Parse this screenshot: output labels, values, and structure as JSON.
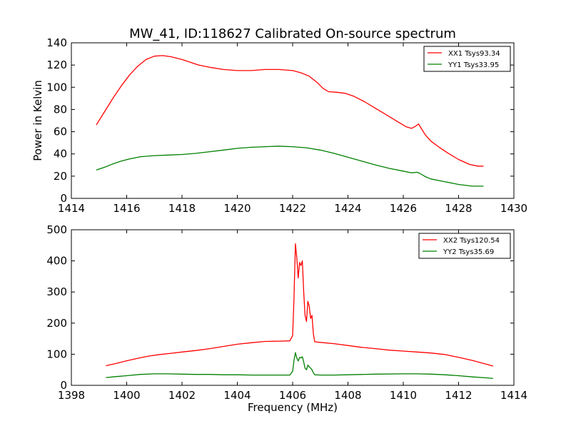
{
  "figure": {
    "title": "MW_41, ID:118627 Calibrated On-source spectrum",
    "background": "#ffffff"
  },
  "chart_data": [
    {
      "type": "line",
      "title": "MW_41, ID:118627 Calibrated On-source spectrum",
      "xlabel": "",
      "ylabel": "Power in Kelvin",
      "xlim": [
        1414,
        1430
      ],
      "ylim": [
        0,
        140
      ],
      "xticks": [
        1414,
        1416,
        1418,
        1420,
        1422,
        1424,
        1426,
        1428,
        1430
      ],
      "yticks": [
        0,
        20,
        40,
        60,
        80,
        100,
        120,
        140
      ],
      "grid": false,
      "legend_position": "top-right",
      "series": [
        {
          "name": "XX1 Tsys93.34",
          "color": "#ff0000",
          "x": [
            1414.9,
            1415.2,
            1415.5,
            1415.8,
            1416.1,
            1416.4,
            1416.7,
            1417.0,
            1417.3,
            1417.6,
            1418.0,
            1418.3,
            1418.6,
            1419.0,
            1419.5,
            1420.0,
            1420.5,
            1421.0,
            1421.5,
            1422.0,
            1422.3,
            1422.6,
            1422.9,
            1423.1,
            1423.3,
            1423.6,
            1423.9,
            1424.2,
            1424.6,
            1425.0,
            1425.4,
            1425.8,
            1426.1,
            1426.3,
            1426.45,
            1426.55,
            1426.65,
            1426.8,
            1427.0,
            1427.3,
            1427.6,
            1428.0,
            1428.4,
            1428.7,
            1428.9
          ],
          "values": [
            66,
            78,
            90,
            101,
            111,
            119,
            125,
            128,
            128.5,
            127.5,
            125,
            122.5,
            120,
            118,
            116,
            115,
            115,
            116,
            116,
            115,
            113,
            110,
            104,
            99,
            96,
            95.5,
            94.5,
            92,
            87,
            81,
            75,
            69,
            64.5,
            63,
            65,
            67,
            63,
            57,
            51.5,
            46,
            41,
            35,
            30.5,
            29,
            29
          ]
        },
        {
          "name": "YY1 Tsys33.95",
          "color": "#008000",
          "x": [
            1414.9,
            1415.2,
            1415.5,
            1415.8,
            1416.1,
            1416.5,
            1417.0,
            1417.5,
            1418.0,
            1418.5,
            1419.0,
            1419.5,
            1420.0,
            1420.5,
            1421.0,
            1421.5,
            1422.0,
            1422.5,
            1423.0,
            1423.5,
            1424.0,
            1424.5,
            1425.0,
            1425.5,
            1426.0,
            1426.3,
            1426.5,
            1426.6,
            1426.8,
            1427.0,
            1427.5,
            1428.0,
            1428.5,
            1428.9
          ],
          "values": [
            25.5,
            28,
            31,
            33.5,
            35.5,
            37.5,
            38.5,
            39,
            39.5,
            40.5,
            42,
            43.5,
            45,
            46,
            46.5,
            47,
            46.5,
            45.5,
            43.5,
            40.5,
            37,
            33.5,
            30,
            27,
            24.5,
            23,
            23.5,
            22.5,
            19.5,
            17.5,
            15,
            12.5,
            11,
            11
          ]
        }
      ]
    },
    {
      "type": "line",
      "title": "",
      "xlabel": "Frequency (MHz)",
      "ylabel": "",
      "xlim": [
        1398,
        1414
      ],
      "ylim": [
        0,
        500
      ],
      "xticks": [
        1398,
        1400,
        1402,
        1404,
        1406,
        1408,
        1410,
        1412,
        1414
      ],
      "yticks": [
        0,
        100,
        200,
        300,
        400,
        500
      ],
      "grid": false,
      "legend_position": "top-right",
      "series": [
        {
          "name": "XX2 Tsys120.54",
          "color": "#ff0000",
          "x": [
            1399.25,
            1399.6,
            1400.0,
            1400.4,
            1400.8,
            1401.2,
            1401.6,
            1402.0,
            1402.5,
            1403.0,
            1403.5,
            1404.0,
            1404.5,
            1405.0,
            1405.5,
            1405.9,
            1406.0,
            1406.05,
            1406.1,
            1406.15,
            1406.2,
            1406.25,
            1406.3,
            1406.35,
            1406.4,
            1406.45,
            1406.5,
            1406.55,
            1406.6,
            1406.65,
            1406.7,
            1406.75,
            1406.8,
            1407.0,
            1407.5,
            1408.0,
            1408.5,
            1409.0,
            1409.5,
            1410.0,
            1410.5,
            1411.0,
            1411.5,
            1412.0,
            1412.5,
            1413.0,
            1413.25
          ],
          "values": [
            63,
            70,
            79,
            87,
            94,
            99,
            103,
            107,
            112,
            118,
            125,
            132,
            137,
            141,
            142,
            143,
            160,
            280,
            455,
            410,
            345,
            395,
            385,
            400,
            300,
            225,
            205,
            270,
            255,
            215,
            225,
            165,
            140,
            138,
            134,
            128,
            122,
            118,
            113,
            110,
            107,
            104,
            99,
            90,
            80,
            68,
            62
          ]
        },
        {
          "name": "YY2 Tsys35.69",
          "color": "#008000",
          "x": [
            1399.25,
            1399.6,
            1400.0,
            1400.5,
            1401.0,
            1401.5,
            1402.0,
            1402.5,
            1403.0,
            1403.5,
            1404.0,
            1404.5,
            1405.0,
            1405.5,
            1405.9,
            1406.0,
            1406.05,
            1406.1,
            1406.15,
            1406.2,
            1406.25,
            1406.3,
            1406.35,
            1406.4,
            1406.45,
            1406.5,
            1406.55,
            1406.6,
            1406.65,
            1406.7,
            1406.75,
            1406.8,
            1407.0,
            1407.5,
            1408.0,
            1409.0,
            1410.0,
            1410.5,
            1411.0,
            1411.5,
            1412.0,
            1412.5,
            1413.0,
            1413.25
          ],
          "values": [
            25,
            28,
            31,
            35,
            37,
            37,
            36,
            35,
            35,
            34,
            34,
            33,
            33,
            33,
            33,
            45,
            80,
            105,
            88,
            78,
            90,
            88,
            92,
            75,
            55,
            50,
            65,
            60,
            55,
            50,
            40,
            34,
            33,
            33,
            34,
            36,
            37,
            37,
            36,
            34,
            31,
            27,
            24,
            22
          ]
        }
      ]
    }
  ]
}
